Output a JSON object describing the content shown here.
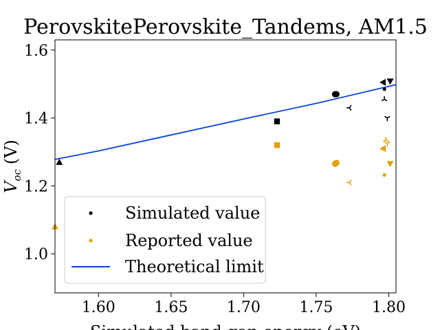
{
  "chart_data": {
    "type": "scatter",
    "title": "PerovskitePerovskite_Tandems, AM1.5",
    "xlabel": "Simulated band gap energy (eV)",
    "ylabel": "V_oc (V)",
    "ylabel_main": "V",
    "ylabel_sub": "oc",
    "ylabel_unit": "(V)",
    "xlim": [
      1.57,
      1.805
    ],
    "ylim": [
      0.885,
      1.63
    ],
    "xticks": [
      "1.60",
      "1.65",
      "1.70",
      "1.75",
      "1.80"
    ],
    "xtick_values": [
      1.6,
      1.65,
      1.7,
      1.75,
      1.8
    ],
    "yticks": [
      "1.0",
      "1.2",
      "1.4",
      "1.6"
    ],
    "ytick_values": [
      1.0,
      1.2,
      1.4,
      1.6
    ],
    "grid": false,
    "legend_placement": "lower-left",
    "colors": {
      "simulated": "#000000",
      "reported": "#e69f00",
      "theoretical": "#0343df"
    },
    "series": [
      {
        "name": "Simulated value",
        "points": [
          {
            "x": 1.573,
            "y": 1.27,
            "marker": "triangle-up"
          },
          {
            "x": 1.723,
            "y": 1.39,
            "marker": "square"
          },
          {
            "x": 1.763,
            "y": 1.47,
            "marker": "circle"
          },
          {
            "x": 1.764,
            "y": 1.47,
            "marker": "circle"
          },
          {
            "x": 1.773,
            "y": 1.43,
            "marker": "tri-left"
          },
          {
            "x": 1.796,
            "y": 1.505,
            "marker": "triangle-left"
          },
          {
            "x": 1.797,
            "y": 1.485,
            "marker": "dot"
          },
          {
            "x": 1.797,
            "y": 1.455,
            "marker": "tri-up"
          },
          {
            "x": 1.799,
            "y": 1.4,
            "marker": "tri-down"
          },
          {
            "x": 1.801,
            "y": 1.508,
            "marker": "triangle-down"
          }
        ]
      },
      {
        "name": "Reported value",
        "points": [
          {
            "x": 1.57,
            "y": 1.08,
            "marker": "triangle-up"
          },
          {
            "x": 1.723,
            "y": 1.32,
            "marker": "square"
          },
          {
            "x": 1.763,
            "y": 1.265,
            "marker": "circle"
          },
          {
            "x": 1.764,
            "y": 1.268,
            "marker": "circle"
          },
          {
            "x": 1.773,
            "y": 1.21,
            "marker": "tri-left"
          },
          {
            "x": 1.796,
            "y": 1.31,
            "marker": "triangle-left"
          },
          {
            "x": 1.797,
            "y": 1.232,
            "marker": "dot"
          },
          {
            "x": 1.798,
            "y": 1.335,
            "marker": "tri-up"
          },
          {
            "x": 1.799,
            "y": 1.325,
            "marker": "tri-down"
          },
          {
            "x": 1.801,
            "y": 1.265,
            "marker": "triangle-down"
          }
        ]
      },
      {
        "name": "Theoretical limit",
        "type": "line",
        "x": [
          1.57,
          1.6,
          1.65,
          1.7,
          1.75,
          1.805
        ],
        "y": [
          1.278,
          1.303,
          1.35,
          1.397,
          1.443,
          1.498
        ]
      }
    ],
    "legend": [
      "Simulated value",
      "Reported value",
      "Theoretical limit"
    ]
  }
}
